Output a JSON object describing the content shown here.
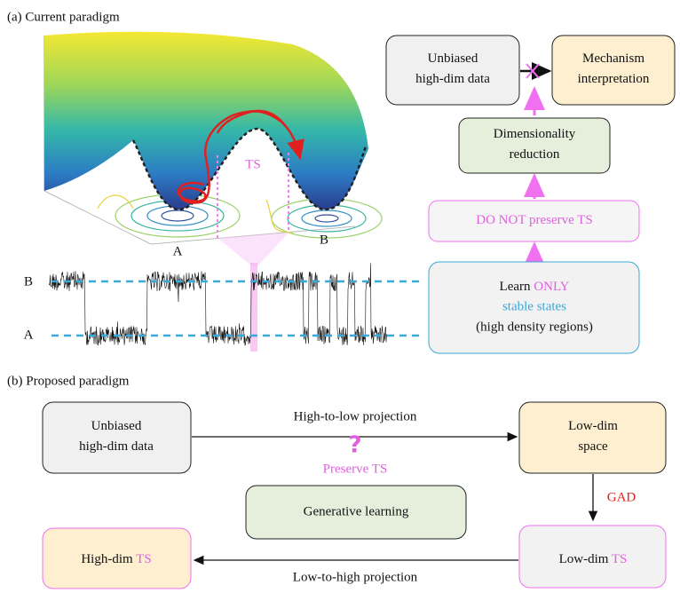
{
  "panel_a": {
    "label": "(a) Current paradigm",
    "surface_labels": {
      "ts": "TS",
      "a": "A",
      "b": "B"
    },
    "trajectory_labels": {
      "b": "B",
      "a": "A"
    },
    "boxes": {
      "unbiased": [
        "Unbiased",
        "high-dim data"
      ],
      "mechanism": [
        "Mechanism",
        "interpretation"
      ],
      "dimred": [
        "Dimensionality",
        "reduction"
      ],
      "not_preserve": [
        "DO NOT",
        "preserve TS"
      ],
      "learn": {
        "line1": [
          "Learn",
          "ONLY"
        ],
        "line2": "stable states",
        "line3": "(high density regions)"
      }
    }
  },
  "panel_b": {
    "label": "(b) Proposed paradigm",
    "boxes": {
      "unbiased": [
        "Unbiased",
        "high-dim data"
      ],
      "lowdim_space": [
        "Low-dim",
        "space"
      ],
      "generative": "Generative learning",
      "lowdim_ts": [
        "Low-dim",
        "TS"
      ],
      "highdim_ts": [
        "High-dim",
        "TS"
      ]
    },
    "edges": {
      "high_to_low": "High-to-low projection",
      "question": "?",
      "preserve": "Preserve TS",
      "gad": "GAD",
      "low_to_high": "Low-to-high projection"
    }
  }
}
